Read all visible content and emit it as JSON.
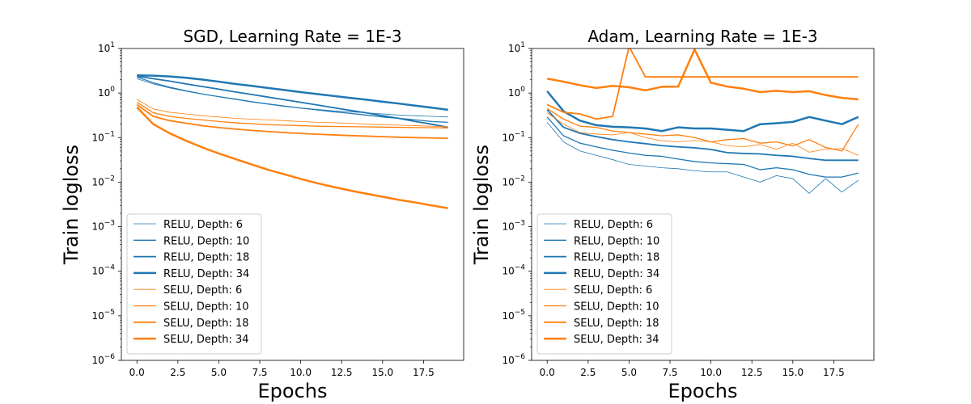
{
  "chart_data": [
    {
      "type": "line",
      "title": "SGD, Learning Rate = 1E-3",
      "xlabel": "Epochs",
      "ylabel": "Train logloss",
      "yscale": "log",
      "xlim": [
        -0.95,
        19.95
      ],
      "ylim": [
        1e-06,
        10
      ],
      "xticks": [
        "0.0",
        "2.5",
        "5.0",
        "7.5",
        "10.0",
        "12.5",
        "15.0",
        "17.5"
      ],
      "yticks": [
        "10",
        "10",
        "10",
        "10",
        "10",
        "10",
        "10",
        "10"
      ],
      "yticks_exp": [
        "−6",
        "−5",
        "−4",
        "−3",
        "−2",
        "−1",
        "0",
        "1"
      ],
      "legend_position": "lower-left",
      "grid": false,
      "x": [
        0,
        1,
        2,
        3,
        4,
        5,
        6,
        7,
        8,
        9,
        10,
        11,
        12,
        13,
        14,
        15,
        16,
        17,
        18,
        19
      ],
      "series": [
        {
          "name": "RELU, Depth: 6",
          "color": "#1f77b4",
          "width": 0.8,
          "values": [
            2.1,
            1.6,
            1.3,
            1.1,
            0.95,
            0.83,
            0.72,
            0.63,
            0.56,
            0.5,
            0.46,
            0.43,
            0.4,
            0.38,
            0.36,
            0.34,
            0.32,
            0.31,
            0.3,
            0.29
          ]
        },
        {
          "name": "RELU, Depth: 10",
          "color": "#1f77b4",
          "width": 1.3,
          "values": [
            2.3,
            1.7,
            1.35,
            1.12,
            0.95,
            0.83,
            0.73,
            0.64,
            0.57,
            0.51,
            0.46,
            0.42,
            0.38,
            0.35,
            0.32,
            0.29,
            0.27,
            0.25,
            0.23,
            0.22
          ]
        },
        {
          "name": "RELU, Depth: 18",
          "color": "#1f77b4",
          "width": 1.8,
          "values": [
            2.4,
            2.1,
            1.85,
            1.6,
            1.4,
            1.22,
            1.06,
            0.93,
            0.81,
            0.71,
            0.62,
            0.54,
            0.47,
            0.41,
            0.36,
            0.31,
            0.27,
            0.23,
            0.2,
            0.17
          ]
        },
        {
          "name": "RELU, Depth: 34",
          "color": "#1f77b4",
          "width": 2.5,
          "values": [
            2.5,
            2.45,
            2.35,
            2.2,
            2.0,
            1.8,
            1.6,
            1.45,
            1.3,
            1.17,
            1.05,
            0.95,
            0.86,
            0.78,
            0.71,
            0.64,
            0.58,
            0.52,
            0.47,
            0.42
          ]
        },
        {
          "name": "SELU, Depth: 6",
          "color": "#ff7f0e",
          "width": 0.8,
          "values": [
            0.72,
            0.44,
            0.37,
            0.34,
            0.31,
            0.29,
            0.27,
            0.26,
            0.25,
            0.24,
            0.23,
            0.22,
            0.215,
            0.21,
            0.2,
            0.195,
            0.19,
            0.185,
            0.18,
            0.175
          ]
        },
        {
          "name": "SELU, Depth: 10",
          "color": "#ff7f0e",
          "width": 1.3,
          "values": [
            0.62,
            0.36,
            0.3,
            0.27,
            0.25,
            0.23,
            0.215,
            0.205,
            0.195,
            0.19,
            0.185,
            0.18,
            0.178,
            0.176,
            0.174,
            0.172,
            0.17,
            0.168,
            0.167,
            0.165
          ]
        },
        {
          "name": "SELU, Depth: 18",
          "color": "#ff7f0e",
          "width": 1.8,
          "values": [
            0.55,
            0.3,
            0.24,
            0.21,
            0.185,
            0.168,
            0.155,
            0.145,
            0.137,
            0.13,
            0.124,
            0.119,
            0.115,
            0.111,
            0.108,
            0.105,
            0.102,
            0.1,
            0.098,
            0.096
          ]
        },
        {
          "name": "SELU, Depth: 34",
          "color": "#ff7f0e",
          "width": 2.5,
          "values": [
            0.48,
            0.2,
            0.125,
            0.085,
            0.06,
            0.044,
            0.033,
            0.025,
            0.019,
            0.015,
            0.0118,
            0.0095,
            0.0078,
            0.0065,
            0.0055,
            0.0047,
            0.004,
            0.0035,
            0.003,
            0.0026
          ]
        }
      ]
    },
    {
      "type": "line",
      "title": "Adam, Learning Rate = 1E-3",
      "xlabel": "Epochs",
      "ylabel": "Train logloss",
      "yscale": "log",
      "xlim": [
        -0.95,
        19.95
      ],
      "ylim": [
        1e-06,
        10
      ],
      "xticks": [
        "0.0",
        "2.5",
        "5.0",
        "7.5",
        "10.0",
        "12.5",
        "15.0",
        "17.5"
      ],
      "yticks": [
        "10",
        "10",
        "10",
        "10",
        "10",
        "10",
        "10",
        "10"
      ],
      "yticks_exp": [
        "−6",
        "−5",
        "−4",
        "−3",
        "−2",
        "−1",
        "0",
        "1"
      ],
      "legend_position": "lower-left",
      "grid": false,
      "x": [
        0,
        1,
        2,
        3,
        4,
        5,
        6,
        7,
        8,
        9,
        10,
        11,
        12,
        13,
        14,
        15,
        16,
        17,
        18,
        19
      ],
      "series": [
        {
          "name": "RELU, Depth: 6",
          "color": "#1f77b4",
          "width": 0.8,
          "values": [
            0.22,
            0.08,
            0.05,
            0.04,
            0.032,
            0.025,
            0.023,
            0.021,
            0.02,
            0.018,
            0.017,
            0.017,
            0.013,
            0.01,
            0.014,
            0.012,
            0.0056,
            0.012,
            0.006,
            0.011
          ]
        },
        {
          "name": "RELU, Depth: 10",
          "color": "#1f77b4",
          "width": 1.3,
          "values": [
            0.29,
            0.11,
            0.075,
            0.062,
            0.052,
            0.045,
            0.04,
            0.038,
            0.033,
            0.029,
            0.027,
            0.026,
            0.025,
            0.019,
            0.021,
            0.019,
            0.015,
            0.013,
            0.013,
            0.016
          ]
        },
        {
          "name": "RELU, Depth: 18",
          "color": "#1f77b4",
          "width": 1.8,
          "values": [
            0.42,
            0.17,
            0.125,
            0.105,
            0.09,
            0.08,
            0.073,
            0.066,
            0.062,
            0.059,
            0.054,
            0.046,
            0.044,
            0.043,
            0.04,
            0.038,
            0.034,
            0.031,
            0.031,
            0.031
          ]
        },
        {
          "name": "RELU, Depth: 34",
          "color": "#1f77b4",
          "width": 2.5,
          "values": [
            1.1,
            0.39,
            0.24,
            0.19,
            0.175,
            0.17,
            0.16,
            0.14,
            0.17,
            0.16,
            0.16,
            0.15,
            0.14,
            0.2,
            0.21,
            0.225,
            0.29,
            0.24,
            0.2,
            0.29
          ]
        },
        {
          "name": "SELU, Depth: 6",
          "color": "#ff7f0e",
          "width": 0.8,
          "values": [
            0.36,
            0.2,
            0.13,
            0.12,
            0.115,
            0.13,
            0.1,
            0.085,
            0.08,
            0.086,
            0.08,
            0.066,
            0.062,
            0.07,
            0.055,
            0.075,
            0.047,
            0.055,
            0.057,
            0.04
          ]
        },
        {
          "name": "SELU, Depth: 10",
          "color": "#ff7f0e",
          "width": 1.3,
          "values": [
            0.45,
            0.26,
            0.18,
            0.17,
            0.14,
            0.13,
            0.12,
            0.11,
            0.115,
            0.1,
            0.08,
            0.09,
            0.095,
            0.075,
            0.08,
            0.065,
            0.09,
            0.06,
            0.05,
            0.2
          ]
        },
        {
          "name": "SELU, Depth: 18",
          "color": "#ff7f0e",
          "width": 1.8,
          "values": [
            0.55,
            0.37,
            0.34,
            0.26,
            0.3,
            11.0,
            2.3,
            2.3,
            2.3,
            2.3,
            2.3,
            2.3,
            2.3,
            2.3,
            2.3,
            2.3,
            2.3,
            2.3,
            2.3,
            2.3
          ]
        },
        {
          "name": "SELU, Depth: 34",
          "color": "#ff7f0e",
          "width": 2.5,
          "values": [
            2.1,
            1.8,
            1.5,
            1.3,
            1.45,
            1.35,
            1.15,
            1.38,
            1.4,
            9.5,
            1.7,
            1.4,
            1.25,
            1.05,
            1.12,
            1.05,
            1.1,
            0.9,
            0.78,
            0.72
          ]
        }
      ]
    }
  ]
}
